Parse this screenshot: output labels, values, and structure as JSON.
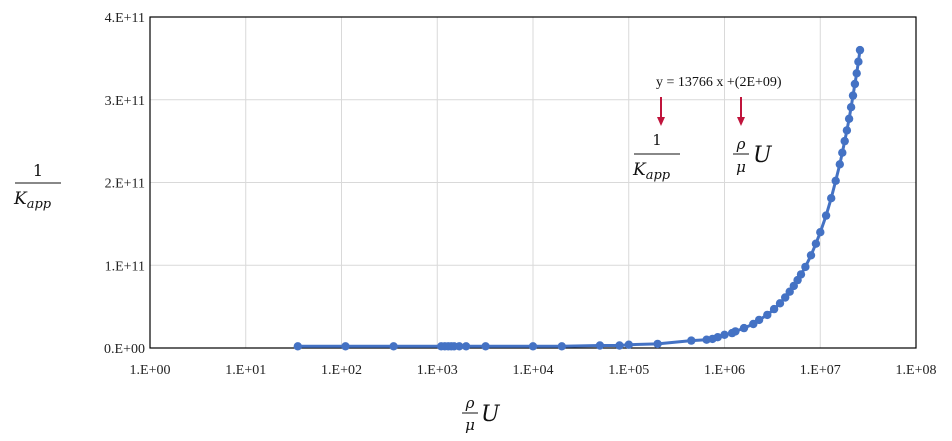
{
  "chart_data": {
    "type": "scatter",
    "x_scale": "log",
    "xlim": [
      1,
      100000000
    ],
    "ylim": [
      0,
      400000000000
    ],
    "grid": true,
    "x_ticks": [
      "1.E+00",
      "1.E+01",
      "1.E+02",
      "1.E+03",
      "1.E+04",
      "1.E+05",
      "1.E+06",
      "1.E+07",
      "1.E+08"
    ],
    "y_ticks": [
      "0.E+00",
      "1.E+11",
      "2.E+11",
      "3.E+11",
      "4.E+11"
    ],
    "xlabel": {
      "num": "ρ",
      "den": "μ",
      "var": "U"
    },
    "ylabel": {
      "num": "1",
      "den_base": "K",
      "den_sub": "app"
    },
    "annotation": {
      "equation": "y = 13766 x +(2E+09)",
      "label_1": {
        "num": "1",
        "den_base": "K",
        "den_sub": "app"
      },
      "label_2": {
        "num": "ρ",
        "den": "μ",
        "var": "U"
      },
      "arrow_color": "#c0143c"
    },
    "series": [
      {
        "color": "#4472c4",
        "x": [
          35,
          110,
          350,
          1100,
          1200,
          1300,
          1400,
          1500,
          1700,
          2000,
          3200,
          10000,
          20000,
          50000,
          80000,
          100000,
          200000,
          450000,
          650000,
          750000,
          850000,
          1000000,
          1200000,
          1300000,
          1600000,
          2000000,
          2300000,
          2800000,
          3300000,
          3800000,
          4300000,
          4800000,
          5300000,
          5800000,
          6300000,
          7000000,
          8000000,
          9000000,
          10000000,
          11500000,
          13000000,
          14500000,
          16000000,
          17000000,
          18000000,
          19000000,
          20000000,
          21000000,
          22000000,
          23000000,
          24000000,
          25000000,
          26000000
        ],
        "y": [
          2000000000,
          2000000000,
          2000000000,
          2000000000,
          2000000000,
          2000000000,
          2000000000,
          2000000000,
          2000000000,
          2000000000,
          2000000000,
          2000000000,
          2000000000,
          3000000000,
          3000000000,
          4000000000,
          5000000000,
          9000000000,
          10000000000,
          11000000000,
          13000000000,
          16000000000,
          18000000000,
          20000000000,
          24000000000,
          29000000000,
          34000000000,
          40000000000,
          47000000000,
          54000000000,
          61000000000,
          68000000000,
          75000000000,
          82000000000,
          89000000000,
          98000000000,
          112000000000,
          126000000000,
          140000000000,
          160000000000,
          181000000000,
          202000000000,
          222000000000,
          236000000000,
          250000000000,
          263000000000,
          277000000000,
          291000000000,
          305000000000,
          319000000000,
          332000000000,
          346000000000,
          360000000000
        ]
      }
    ]
  }
}
